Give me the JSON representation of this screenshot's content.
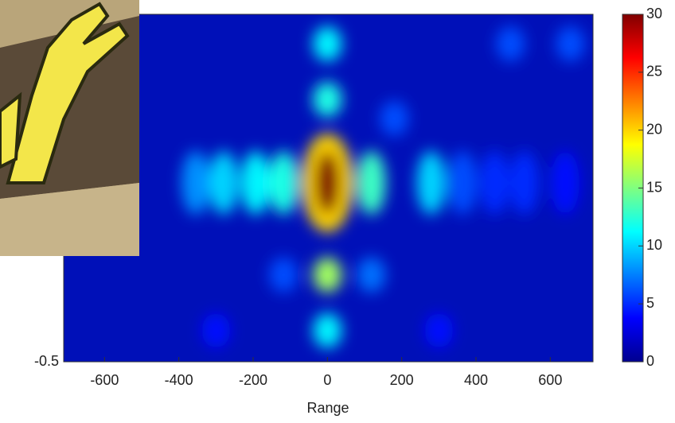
{
  "chart_data": {
    "type": "heatmap",
    "x_label": "Range",
    "xlim": [
      -710,
      715
    ],
    "xticks": [
      -600,
      -400,
      -200,
      0,
      200,
      400,
      600
    ],
    "ylim": [
      -0.5,
      0.5
    ],
    "yticks": [
      -0.5
    ],
    "clim": [
      0,
      30
    ],
    "cticks": [
      0,
      5,
      10,
      15,
      20,
      25,
      30
    ],
    "colormap": "jet",
    "blobs": [
      {
        "x": 0,
        "y": 0.415,
        "value": 11
      },
      {
        "x": 493,
        "y": 0.415,
        "value": 6
      },
      {
        "x": 654,
        "y": 0.415,
        "value": 6
      },
      {
        "x": 0,
        "y": 0.255,
        "value": 12
      },
      {
        "x": 180,
        "y": 0.2,
        "value": 6
      },
      {
        "x": -354,
        "y": 0.015,
        "value": 8
      },
      {
        "x": -279,
        "y": 0.015,
        "value": 10
      },
      {
        "x": -193,
        "y": 0.015,
        "value": 11
      },
      {
        "x": -118,
        "y": 0.015,
        "value": 12
      },
      {
        "x": 0,
        "y": 0.015,
        "value": 20
      },
      {
        "x": 0,
        "y": 0.015,
        "value": 30
      },
      {
        "x": 118,
        "y": 0.015,
        "value": 13
      },
      {
        "x": 279,
        "y": 0.015,
        "value": 10
      },
      {
        "x": 364,
        "y": 0.015,
        "value": 6
      },
      {
        "x": 450,
        "y": 0.015,
        "value": 5
      },
      {
        "x": 530,
        "y": 0.015,
        "value": 5
      },
      {
        "x": 640,
        "y": 0.015,
        "value": 4
      },
      {
        "x": -118,
        "y": -0.25,
        "value": 6
      },
      {
        "x": 0,
        "y": -0.25,
        "value": 16
      },
      {
        "x": 118,
        "y": -0.25,
        "value": 7
      },
      {
        "x": -300,
        "y": -0.41,
        "value": 4
      },
      {
        "x": 0,
        "y": -0.41,
        "value": 11
      },
      {
        "x": 300,
        "y": -0.41,
        "value": 4
      }
    ]
  }
}
